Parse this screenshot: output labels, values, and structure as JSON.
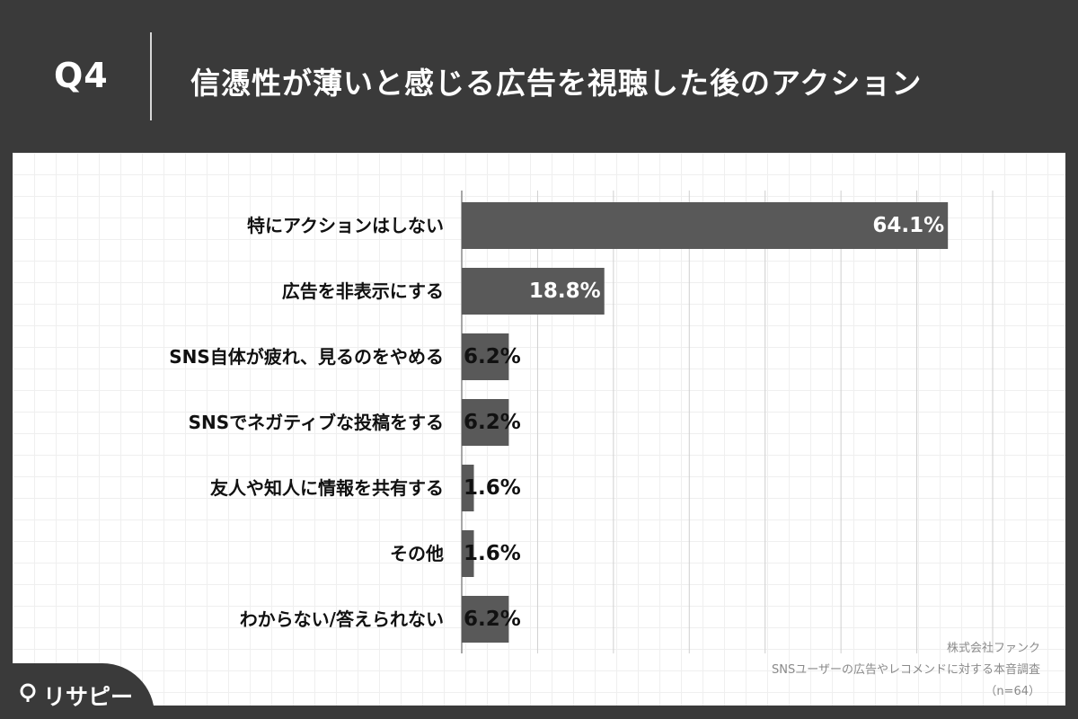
{
  "header": {
    "question_number": "Q4",
    "title": "信憑性が薄いと感じる広告を視聴した後のアクション"
  },
  "source": {
    "company": "株式会社ファンク",
    "survey": "SNSユーザーの広告やレコメンドに対する本音調査",
    "sample": "（n=64）"
  },
  "logo": {
    "text": "リサピー"
  },
  "colors": {
    "header_bg": "#3a3a3a",
    "bar": "#595959",
    "panel": "#ffffff",
    "value_inside": "#ffffff",
    "value_outside": "#111111"
  },
  "chart_data": {
    "type": "bar",
    "orientation": "horizontal",
    "categories": [
      "特にアクションはしない",
      "広告を非表示にする",
      "SNS自体が疲れ、見るのをやめる",
      "SNSでネガティブな投稿をする",
      "友人や知人に情報を共有する",
      "その他",
      "わからない/答えられない"
    ],
    "values": [
      64.1,
      18.8,
      6.2,
      6.2,
      1.6,
      1.6,
      6.2
    ],
    "value_labels": [
      "64.1%",
      "18.8%",
      "6.2%",
      "6.2%",
      "1.6%",
      "1.6%",
      "6.2%"
    ],
    "xlim": [
      0,
      70
    ],
    "grid": true,
    "unit": "%"
  }
}
